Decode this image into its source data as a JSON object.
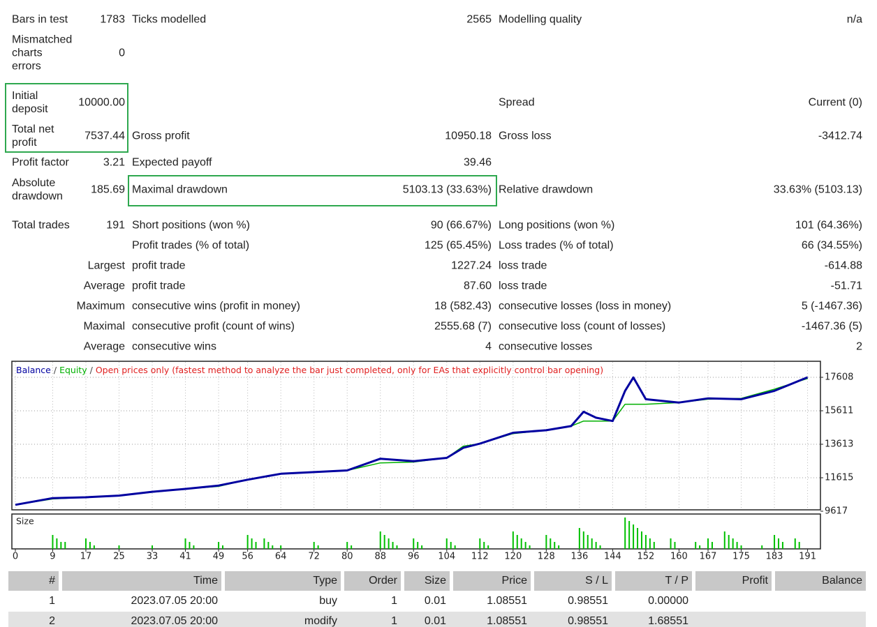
{
  "stats": {
    "rows": [
      {
        "left": {
          "label": "Bars in test",
          "value": "1783"
        },
        "middle": {
          "label": "Ticks modelled",
          "value": "2565"
        },
        "right": {
          "label": "Modelling quality",
          "value": "n/a"
        }
      },
      {
        "left": {
          "label": "Mismatched charts errors",
          "value": "0"
        }
      },
      {
        "left": {
          "label": "Initial deposit",
          "value": "10000.00"
        },
        "right": {
          "label": "Spread",
          "value": "Current (0)"
        }
      },
      {
        "left": {
          "label": "Total net profit",
          "value": "7537.44"
        },
        "middle": {
          "label": "Gross profit",
          "value": "10950.18"
        },
        "right": {
          "label": "Gross loss",
          "value": "-3412.74"
        }
      },
      {
        "left": {
          "label": "Profit factor",
          "value": "3.21"
        },
        "middle": {
          "label": "Expected payoff",
          "value": "39.46"
        }
      },
      {
        "left": {
          "label": "Absolute drawdown",
          "value": "185.69"
        },
        "middle": {
          "label": "Maximal drawdown",
          "value": "5103.13 (33.63%)"
        },
        "right": {
          "label": "Relative drawdown",
          "value": "33.63% (5103.13)"
        }
      },
      {
        "left": {
          "label": "Total trades",
          "value": "191"
        },
        "middle": {
          "label": "Short positions (won %)",
          "value": "90 (66.67%)"
        },
        "right": {
          "label": "Long positions (won %)",
          "value": "101 (64.36%)"
        }
      },
      {
        "middle": {
          "label": "Profit trades (% of total)",
          "value": "125 (65.45%)"
        },
        "right": {
          "label": "Loss trades (% of total)",
          "value": "66 (34.55%)"
        }
      },
      {
        "prefix": "Largest",
        "middle": {
          "label": "profit trade",
          "value": "1227.24"
        },
        "right": {
          "label": "loss trade",
          "value": "-614.88"
        }
      },
      {
        "prefix": "Average",
        "middle": {
          "label": "profit trade",
          "value": "87.60"
        },
        "right": {
          "label": "loss trade",
          "value": "-51.71"
        }
      },
      {
        "prefix": "Maximum",
        "middle": {
          "label": "consecutive wins (profit in money)",
          "value": "18 (582.43)"
        },
        "right": {
          "label": "consecutive losses (loss in money)",
          "value": "5 (-1467.36)"
        }
      },
      {
        "prefix": "Maximal",
        "middle": {
          "label": "consecutive profit (count of wins)",
          "value": "2555.68 (7)"
        },
        "right": {
          "label": "consecutive loss (count of losses)",
          "value": "-1467.36 (5)"
        }
      },
      {
        "prefix": "Average",
        "middle": {
          "label": "consecutive wins",
          "value": "4"
        },
        "right": {
          "label": "consecutive losses",
          "value": "2"
        }
      }
    ]
  },
  "chart_data": [
    {
      "type": "line",
      "legend_separator": "/",
      "note": "Open prices only (fastest method to analyze the bar just completed, only for EAs that explicitly control bar opening)",
      "x": [
        0,
        9,
        17,
        25,
        33,
        41,
        49,
        56,
        64,
        72,
        80,
        88,
        96,
        104,
        108,
        112,
        120,
        128,
        134,
        137,
        140,
        144,
        147,
        149,
        152,
        160,
        167,
        175,
        183,
        191
      ],
      "series": [
        {
          "name": "Balance",
          "color": "#0000a0",
          "values": [
            10000,
            10400,
            10450,
            10550,
            10780,
            10950,
            11150,
            11500,
            11850,
            11950,
            12050,
            12750,
            12600,
            12800,
            13400,
            13650,
            14300,
            14450,
            14700,
            15550,
            15200,
            15000,
            16800,
            17600,
            16300,
            16100,
            16350,
            16300,
            16800,
            17608
          ]
        },
        {
          "name": "Equity",
          "color": "#00b000",
          "values": [
            10000,
            10350,
            10450,
            10550,
            10750,
            10950,
            11100,
            11500,
            11850,
            11950,
            12050,
            12500,
            12550,
            12800,
            13500,
            13650,
            14250,
            14450,
            14700,
            15000,
            15000,
            15000,
            16000,
            16000,
            16000,
            16100,
            16300,
            16350,
            16900,
            17537
          ]
        }
      ],
      "xlim": [
        -0.84,
        194.1
      ],
      "ylim": [
        9700,
        18565
      ],
      "yticks": [
        17608,
        15611,
        13613,
        11615,
        9617
      ],
      "grid": true
    },
    {
      "type": "bar",
      "title": "Size",
      "color": "#00c000",
      "x": [
        9,
        10,
        11,
        12,
        17,
        18,
        19,
        25,
        33,
        41,
        42,
        43,
        49,
        50,
        56,
        57,
        58,
        60,
        61,
        62,
        64,
        72,
        73,
        80,
        81,
        88,
        89,
        90,
        91,
        92,
        96,
        97,
        98,
        104,
        105,
        106,
        112,
        113,
        114,
        120,
        121,
        122,
        123,
        124,
        128,
        129,
        130,
        131,
        136,
        137,
        138,
        139,
        140,
        141,
        147,
        148,
        149,
        150,
        151,
        152,
        153,
        154,
        158,
        159,
        164,
        165,
        167,
        168,
        171,
        172,
        173,
        174,
        175,
        180,
        183,
        184,
        185,
        188,
        189
      ],
      "values": [
        0.04,
        0.03,
        0.02,
        0.02,
        0.03,
        0.02,
        0.01,
        0.01,
        0.01,
        0.03,
        0.02,
        0.01,
        0.02,
        0.01,
        0.04,
        0.03,
        0.02,
        0.03,
        0.02,
        0.01,
        0.01,
        0.02,
        0.01,
        0.02,
        0.01,
        0.05,
        0.04,
        0.03,
        0.02,
        0.01,
        0.03,
        0.02,
        0.01,
        0.03,
        0.02,
        0.01,
        0.03,
        0.02,
        0.01,
        0.05,
        0.04,
        0.03,
        0.02,
        0.01,
        0.04,
        0.03,
        0.02,
        0.01,
        0.06,
        0.05,
        0.04,
        0.03,
        0.02,
        0.01,
        0.09,
        0.08,
        0.07,
        0.06,
        0.05,
        0.04,
        0.03,
        0.02,
        0.03,
        0.02,
        0.02,
        0.01,
        0.03,
        0.02,
        0.05,
        0.04,
        0.03,
        0.02,
        0.01,
        0.01,
        0.04,
        0.03,
        0.02,
        0.03,
        0.02
      ],
      "xlim": [
        -0.84,
        194.1
      ],
      "ylim": [
        0,
        0.1
      ],
      "xticks": [
        0,
        9,
        17,
        25,
        33,
        41,
        49,
        56,
        64,
        72,
        80,
        88,
        96,
        104,
        112,
        120,
        128,
        136,
        144,
        152,
        160,
        167,
        175,
        183,
        191
      ]
    }
  ],
  "trades_table": {
    "columns": [
      "#",
      "Time",
      "Type",
      "Order",
      "Size",
      "Price",
      "S / L",
      "T / P",
      "Profit",
      "Balance"
    ],
    "rows": [
      [
        "1",
        "2023.07.05 20:00",
        "buy",
        "1",
        "0.01",
        "1.08551",
        "0.98551",
        "0.00000"
      ],
      [
        "2",
        "2023.07.05 20:00",
        "modify",
        "1",
        "0.01",
        "1.08551",
        "0.98551",
        "1.68551"
      ]
    ]
  }
}
